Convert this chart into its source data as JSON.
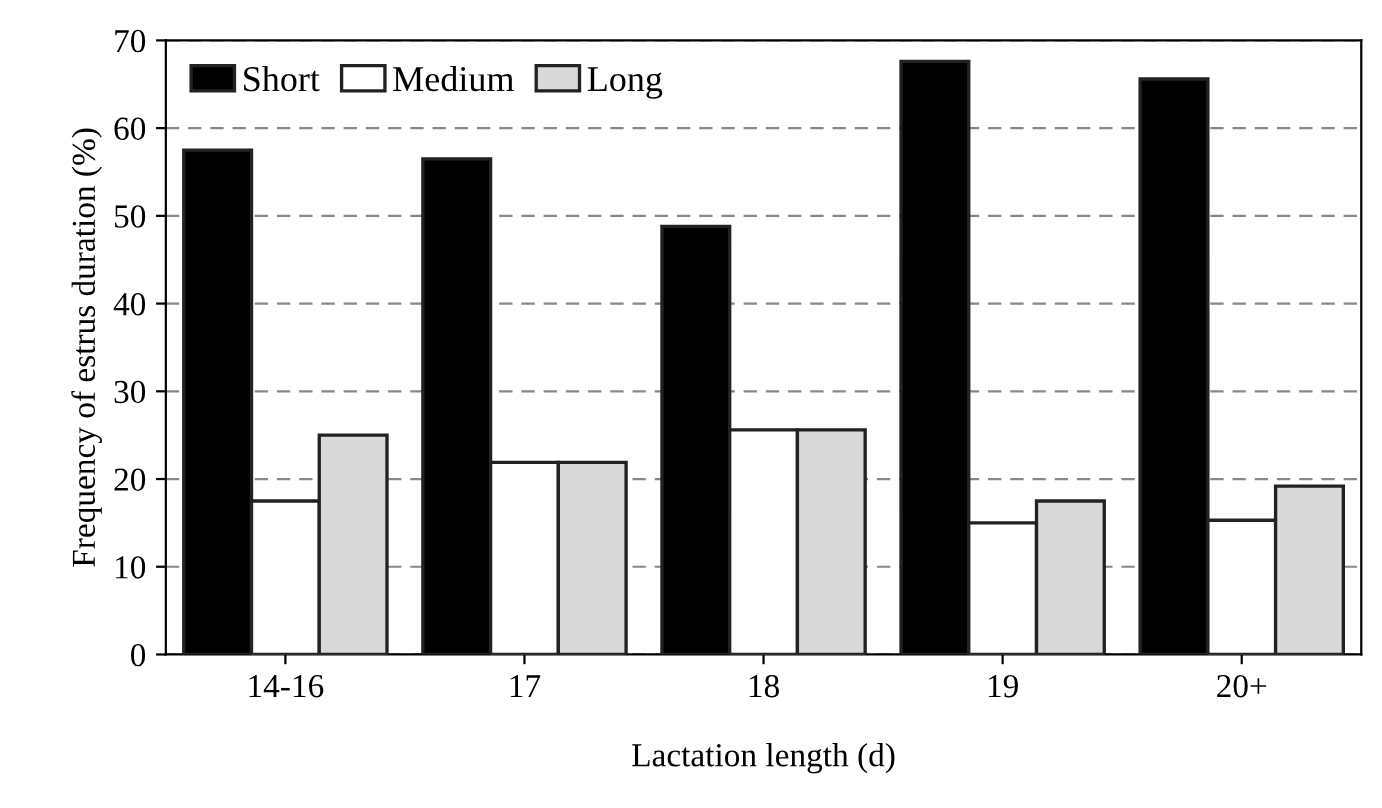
{
  "chart_data": {
    "type": "bar",
    "xlabel": "Lactation length (d)",
    "ylabel": "Frequency of estrus duration (%)",
    "categories": [
      "14-16",
      "17",
      "18",
      "19",
      "20+"
    ],
    "series": [
      {
        "name": "Short",
        "color": "#000000",
        "values": [
          57.5,
          56.5,
          48.8,
          67.6,
          65.6
        ]
      },
      {
        "name": "Medium",
        "color": "#ffffff",
        "values": [
          17.5,
          21.9,
          25.6,
          15.0,
          15.3
        ]
      },
      {
        "name": "Long",
        "color": "#d9d9d9",
        "values": [
          25,
          21.9,
          25.6,
          17.5,
          19.2
        ]
      }
    ],
    "ylim": [
      0,
      70
    ],
    "yticks": [
      0,
      10,
      20,
      30,
      40,
      50,
      60,
      70
    ],
    "grid": "y",
    "legend": "top left"
  }
}
